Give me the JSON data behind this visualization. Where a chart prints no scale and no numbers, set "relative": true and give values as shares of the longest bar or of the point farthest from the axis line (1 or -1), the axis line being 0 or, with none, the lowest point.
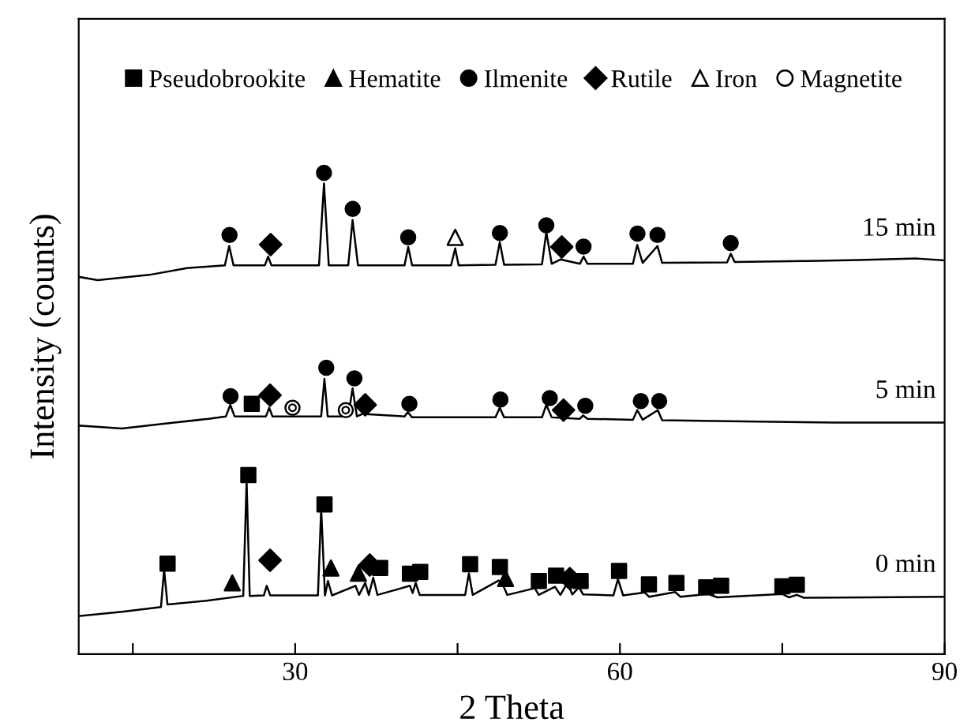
{
  "chart_data": {
    "type": "line",
    "relative": true,
    "xlabel": "2 Theta",
    "ylabel": "Intensity (counts)",
    "xlim": [
      10,
      90
    ],
    "xticks": [
      {
        "value": 15,
        "label": null
      },
      30,
      {
        "value": 45,
        "label": null
      },
      60,
      {
        "value": 75,
        "label": null
      },
      90
    ],
    "tick_labels": "x",
    "legend": "top",
    "grid": false,
    "series": [
      {
        "name": "15 min",
        "color": "#000000",
        "x": [
          10,
          11.75,
          16.5,
          20,
          23.5,
          23.9,
          24.3,
          27.2,
          27.5,
          27.8,
          32.2,
          32.66,
          33.1,
          34.9,
          35.3,
          35.8,
          40.1,
          40.44,
          40.8,
          44.4,
          44.78,
          45.1,
          48.5,
          48.9,
          49.3,
          52.8,
          53.2,
          53.7,
          54.5,
          56.3,
          56.64,
          57,
          61.2,
          61.6,
          62.1,
          63.47,
          63.9,
          69.9,
          70.24,
          70.6,
          77.4,
          82,
          87.45,
          90
        ],
        "values": [
          0.784,
          0.777,
          0.788,
          0.802,
          0.808,
          0.848,
          0.808,
          0.808,
          0.826,
          0.808,
          0.808,
          0.978,
          0.808,
          0.808,
          0.902,
          0.808,
          0.808,
          0.846,
          0.808,
          0.808,
          0.843,
          0.808,
          0.809,
          0.856,
          0.809,
          0.81,
          0.877,
          0.811,
          0.82,
          0.811,
          0.826,
          0.811,
          0.811,
          0.85,
          0.813,
          0.848,
          0.813,
          0.814,
          0.832,
          0.815,
          0.817,
          0.819,
          0.822,
          0.818
        ]
      },
      {
        "name": "5 min",
        "color": "#000000",
        "x": [
          10,
          14,
          18,
          22,
          23.6,
          24.0,
          24.4,
          27.3,
          27.6,
          27.9,
          32.4,
          32.7,
          33.0,
          34.9,
          35.3,
          35.7,
          36.2,
          40.1,
          40.4,
          40.8,
          48.5,
          48.9,
          49.3,
          52.8,
          53.2,
          53.7,
          56.3,
          56.6,
          57,
          61.2,
          61.6,
          62.1,
          63.5,
          63.9,
          70,
          80,
          90
        ],
        "values": [
          0.475,
          0.469,
          0.479,
          0.489,
          0.494,
          0.518,
          0.494,
          0.494,
          0.512,
          0.494,
          0.494,
          0.572,
          0.494,
          0.494,
          0.552,
          0.494,
          0.499,
          0.494,
          0.503,
          0.492,
          0.492,
          0.512,
          0.492,
          0.492,
          0.518,
          0.492,
          0.489,
          0.496,
          0.489,
          0.487,
          0.507,
          0.487,
          0.507,
          0.486,
          0.484,
          0.481,
          0.481
        ]
      },
      {
        "name": "0 min",
        "color": "#000000",
        "x": [
          10,
          14,
          17.6,
          17.89,
          18.2,
          21.8,
          25.2,
          25.51,
          25.8,
          27.1,
          27.37,
          27.7,
          32.1,
          32.4,
          32.75,
          33.03,
          33.4,
          35.57,
          35.9,
          36.47,
          36.8,
          37.21,
          37.6,
          40.6,
          40.85,
          41.13,
          41.5,
          45.7,
          46.05,
          46.4,
          48.8,
          49.23,
          49.6,
          52.14,
          52.5,
          53.99,
          54.5,
          55.16,
          55.6,
          56.22,
          56.6,
          59.4,
          59.82,
          60.3,
          62.3,
          62.7,
          65.11,
          65.6,
          68.13,
          69,
          75.01,
          75.6,
          76.34,
          77,
          83,
          90
        ],
        "values": [
          0.079,
          0.088,
          0.098,
          0.176,
          0.103,
          0.111,
          0.121,
          0.359,
          0.121,
          0.122,
          0.142,
          0.122,
          0.122,
          0.302,
          0.122,
          0.152,
          0.122,
          0.142,
          0.123,
          0.148,
          0.123,
          0.159,
          0.123,
          0.142,
          0.127,
          0.148,
          0.123,
          0.123,
          0.168,
          0.123,
          0.153,
          0.142,
          0.123,
          0.137,
          0.123,
          0.14,
          0.123,
          0.148,
          0.124,
          0.139,
          0.124,
          0.122,
          0.156,
          0.122,
          0.128,
          0.119,
          0.129,
          0.119,
          0.125,
          0.118,
          0.125,
          0.118,
          0.123,
          0.117,
          0.118,
          0.119
        ]
      },
      {
        "name": "Pseudobrookite",
        "type": "scatter",
        "marker": "square",
        "color": "#000000",
        "x": [
          25.99,
          18.21,
          25.67,
          32.71,
          37.85,
          40.6,
          41.55,
          46.16,
          48.91,
          52.51,
          54.1,
          56.37,
          59.92,
          62.68,
          65.22,
          67.97,
          69.35,
          75.01,
          76.34
        ],
        "values": [
          0.52,
          0.188,
          0.372,
          0.311,
          0.179,
          0.167,
          0.171,
          0.187,
          0.181,
          0.152,
          0.163,
          0.152,
          0.173,
          0.145,
          0.148,
          0.139,
          0.142,
          0.141,
          0.144
        ]
      },
      {
        "name": "Hematite",
        "type": "scatter",
        "marker": "triangle",
        "color": "#000000",
        "x": [
          24.19,
          33.3,
          35.84,
          49.44
        ],
        "values": [
          0.148,
          0.179,
          0.168,
          0.157
        ]
      },
      {
        "name": "Ilmenite",
        "type": "scatter",
        "marker": "circle",
        "color": "#000000",
        "x": [
          23.93,
          32.66,
          35.31,
          40.44,
          48.91,
          53.2,
          56.64,
          61.62,
          63.47,
          70.24,
          24.03,
          32.87,
          35.47,
          40.55,
          48.96,
          53.52,
          56.8,
          61.93,
          63.63
        ],
        "values": [
          0.871,
          1.0,
          0.925,
          0.866,
          0.875,
          0.891,
          0.847,
          0.874,
          0.871,
          0.854,
          0.536,
          0.595,
          0.573,
          0.52,
          0.529,
          0.532,
          0.516,
          0.526,
          0.526
        ]
      },
      {
        "name": "Rutile",
        "type": "scatter",
        "marker": "diamond",
        "color": "#000000",
        "x": [
          27.73,
          54.63,
          27.68,
          36.47,
          54.79,
          27.68,
          36.89,
          55.37
        ],
        "values": [
          0.851,
          0.846,
          0.538,
          0.518,
          0.507,
          0.195,
          0.185,
          0.157
        ]
      },
      {
        "name": "Iron",
        "type": "scatter",
        "marker": "triangle",
        "color": "#ffffff",
        "x": [
          44.78
        ],
        "values": [
          0.866
        ]
      },
      {
        "name": "Magnetite",
        "type": "scatter",
        "marker": "circle",
        "color": "#ffffff",
        "x": [
          29.75,
          34.67
        ],
        "values": [
          0.512,
          0.507
        ]
      }
    ]
  }
}
